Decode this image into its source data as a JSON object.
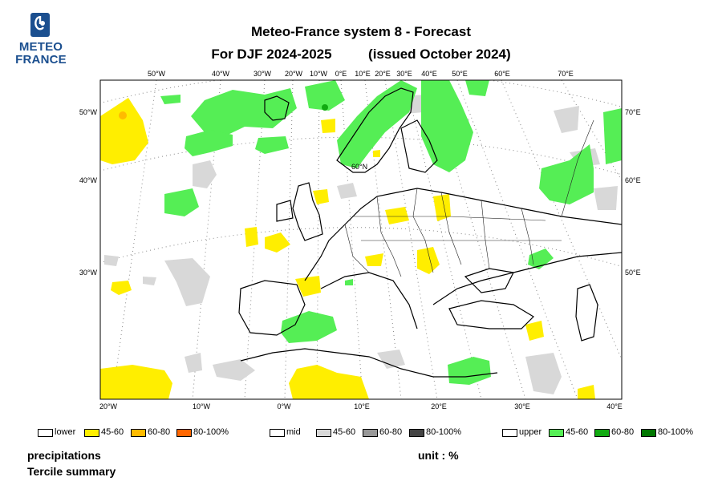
{
  "logo": {
    "line1": "METEO",
    "line2": "FRANCE",
    "color": "#1b4f8f"
  },
  "title": {
    "line1": "Meteo-France system 8  -  Forecast",
    "line2a": "For DJF 2024-2025",
    "line2b": "(issued October 2024)"
  },
  "map": {
    "top_labels": [
      "50°W",
      "40°W",
      "30°W",
      "20°W",
      "10°W",
      "0°E",
      "10°E",
      "20°E",
      "30°E",
      "40°E",
      "50°E",
      "60°E",
      "70°E"
    ],
    "left_labels": [
      "50°W",
      "40°W",
      "30°W"
    ],
    "right_labels": [
      "70°E",
      "60°E",
      "50°E"
    ],
    "bottom_labels": [
      "20°W",
      "10°W",
      "0°W",
      "10°E",
      "20°E",
      "30°E",
      "40°E"
    ],
    "inner_label": "60°N",
    "colors": {
      "lower_45_60": "#ffee00",
      "lower_60_80": "#ffbb00",
      "lower_80_100": "#ff6600",
      "mid_45_60": "#d8d8d8",
      "mid_60_80": "#999999",
      "mid_80_100": "#444444",
      "upper_45_60": "#55ee55",
      "upper_60_80": "#11aa11",
      "upper_80_100": "#007700"
    }
  },
  "legend": {
    "lower": {
      "label": "lower",
      "items": [
        "45-60",
        "60-80",
        "80-100%"
      ]
    },
    "mid": {
      "label": "mid",
      "items": [
        "45-60",
        "60-80",
        "80-100%"
      ]
    },
    "upper": {
      "label": "upper",
      "items": [
        "45-60",
        "60-80",
        "80-100%"
      ]
    }
  },
  "footer": {
    "variable": "precipitations",
    "product": "Tercile summary",
    "unit": "unit : %"
  }
}
